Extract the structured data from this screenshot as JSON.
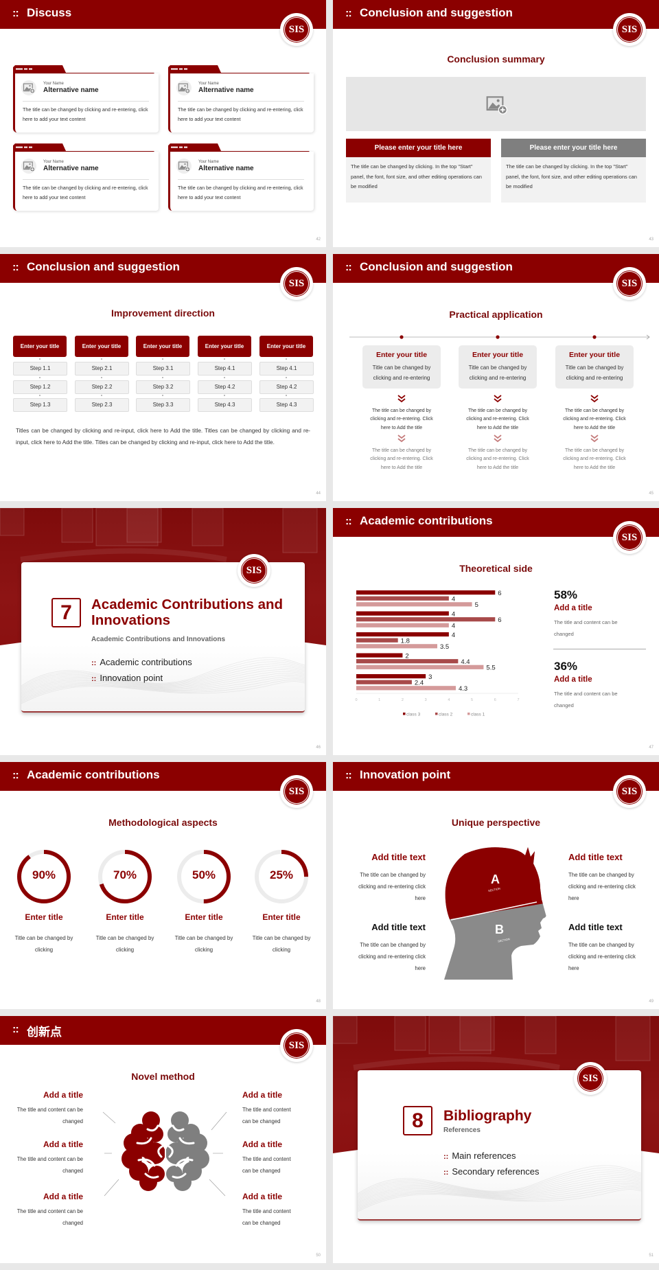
{
  "theme": {
    "primary": "#8b0000",
    "gray": "#7f7f7f",
    "light_gray": "#f2f2f2",
    "page_bg": "#e8e8e8"
  },
  "logo_text": "SIS",
  "header_icon": "grid-dots-icon",
  "discuss": {
    "header": "Discuss",
    "page": "42",
    "cards": [
      {
        "name_label": "Your Name",
        "name": "Alternative name",
        "text": "The title can be changed by clicking and re-entering, click here to add your text content"
      },
      {
        "name_label": "Your Name",
        "name": "Alternative name",
        "text": "The title can be changed by clicking and re-entering, click here to add your text content"
      },
      {
        "name_label": "Your Name",
        "name": "Alternative name",
        "text": "The title can be changed by clicking and re-entering, click here to add your text content"
      },
      {
        "name_label": "Your Name",
        "name": "Alternative name",
        "text": "The title can be changed by clicking and re-entering, click here to add your text content"
      }
    ]
  },
  "summary": {
    "header": "Conclusion and suggestion",
    "subtitle": "Conclusion summary",
    "page": "43",
    "boxes": [
      {
        "title": "Please enter your title here",
        "text": "The title can be changed by clicking. In the top \"Start\" panel, the font, font size, and other editing operations can be modified"
      },
      {
        "title": "Please enter your title here",
        "text": "The title can be changed by clicking. In the top \"Start\" panel, the font, font size, and other editing operations can be modified"
      }
    ]
  },
  "improvement": {
    "header": "Conclusion and suggestion",
    "subtitle": "Improvement direction",
    "page": "44",
    "columns": [
      {
        "title": "Enter your title",
        "steps": [
          "Step 1.1",
          "Step 1.2",
          "Step 1.3"
        ]
      },
      {
        "title": "Enter your title",
        "steps": [
          "Step 2.1",
          "Step 2.2",
          "Step 2.3"
        ]
      },
      {
        "title": "Enter your title",
        "steps": [
          "Step 3.1",
          "Step 3.2",
          "Step 3.3"
        ]
      },
      {
        "title": "Enter your title",
        "steps": [
          "Step 4.1",
          "Step 4.2",
          "Step 4.3"
        ]
      },
      {
        "title": "Enter your title",
        "steps": [
          "Step 4.1",
          "Step 4.2",
          "Step 4.3"
        ]
      }
    ],
    "paragraph": "Titles can be changed by clicking and re-input, click here to Add the title. Titles can be changed by clicking and re-input, click here to Add the title. Titles can be changed by clicking and re-input, click here to Add the title."
  },
  "practical": {
    "header": "Conclusion and suggestion",
    "subtitle": "Practical application",
    "page": "45",
    "columns": [
      {
        "title": "Enter your title",
        "text": "Title can be changed by clicking and re-entering",
        "detail1": "The title can be changed by clicking and re-entering. Click here to Add the title",
        "detail2": "The title can be changed by clicking and re-entering. Click here to Add the title"
      },
      {
        "title": "Enter your title",
        "text": "Title can be changed by clicking and re-entering",
        "detail1": "The title can be changed by clicking and re-entering. Click here to Add the title",
        "detail2": "The title can be changed by clicking and re-entering. Click here to Add the title"
      },
      {
        "title": "Enter your title",
        "text": "Title can be changed by clicking and re-entering",
        "detail1": "The title can be changed by clicking and re-entering. Click here to Add the title",
        "detail2": "The title can be changed by clicking and re-entering. Click here to Add the title"
      }
    ]
  },
  "section7": {
    "number": "7",
    "title": "Academic Contributions and Innovations",
    "subtitle": "Academic Contributions and Innovations",
    "page": "46",
    "items": [
      "Academic contributions",
      "Innovation point"
    ]
  },
  "theoretical": {
    "header": "Academic contributions",
    "subtitle": "Theoretical side",
    "page": "47",
    "stats": [
      {
        "value": "58%",
        "title": "Add a title",
        "text": "The title and content can be changed"
      },
      {
        "value": "36%",
        "title": "Add a title",
        "text": "The title and content can be changed"
      }
    ]
  },
  "chart_data": {
    "type": "bar",
    "orientation": "horizontal",
    "groups": 5,
    "series": [
      {
        "name": "class 3",
        "color": "#8b0000",
        "values": [
          6,
          4,
          4,
          2,
          3
        ]
      },
      {
        "name": "class 2",
        "color": "#a84a4a",
        "values": [
          4,
          6,
          1.8,
          4.4,
          2.4
        ]
      },
      {
        "name": "class 1",
        "color": "#d49a9a",
        "values": [
          5,
          4,
          3.5,
          5.5,
          4.3
        ]
      }
    ],
    "xlim": [
      0,
      7
    ],
    "xticks": [
      "0",
      "1",
      "2",
      "3",
      "4",
      "5",
      "6",
      "7"
    ],
    "data_labels": true,
    "legend": "bottom",
    "grid": false
  },
  "methodological": {
    "header": "Academic contributions",
    "subtitle": "Methodological aspects",
    "page": "48",
    "rings": [
      {
        "value": 90,
        "label": "90%",
        "title": "Enter title",
        "text": "Title can be changed by clicking"
      },
      {
        "value": 70,
        "label": "70%",
        "title": "Enter title",
        "text": "Title can be changed by clicking"
      },
      {
        "value": 50,
        "label": "50%",
        "title": "Enter title",
        "text": "Title can be changed by clicking"
      },
      {
        "value": 25,
        "label": "25%",
        "title": "Enter title",
        "text": "Title can be changed by clicking"
      }
    ]
  },
  "innovation": {
    "header": "Innovation point",
    "subtitle": "Unique perspective",
    "page": "49",
    "head": {
      "a": "A",
      "b": "B",
      "section": "SECTION"
    },
    "items": [
      {
        "title": "Add title text",
        "text": "The title can be changed by clicking and re-entering click here"
      },
      {
        "title": "Add title text",
        "text": "The title can be changed by clicking and re-entering click here"
      },
      {
        "title": "Add title text",
        "text": "The title can be changed by clicking and re-entering click here"
      },
      {
        "title": "Add title text",
        "text": "The title can be changed by clicking and re-entering click here"
      }
    ]
  },
  "novel": {
    "header": "创新点",
    "subtitle": "Novel method",
    "page": "50",
    "items": [
      {
        "title": "Add a title",
        "text": "The title and content can be changed"
      },
      {
        "title": "Add a title",
        "text": "The title and content can be changed"
      },
      {
        "title": "Add a title",
        "text": "The title and content can be changed"
      },
      {
        "title": "Add a title",
        "text": "The title and content can be changed"
      },
      {
        "title": "Add a title",
        "text": "The title and content can be changed"
      },
      {
        "title": "Add a title",
        "text": "The title and content can be changed"
      }
    ]
  },
  "section8": {
    "number": "8",
    "title": "Bibliography",
    "subtitle": "References",
    "page": "51",
    "items": [
      "Main references",
      "Secondary references"
    ]
  }
}
